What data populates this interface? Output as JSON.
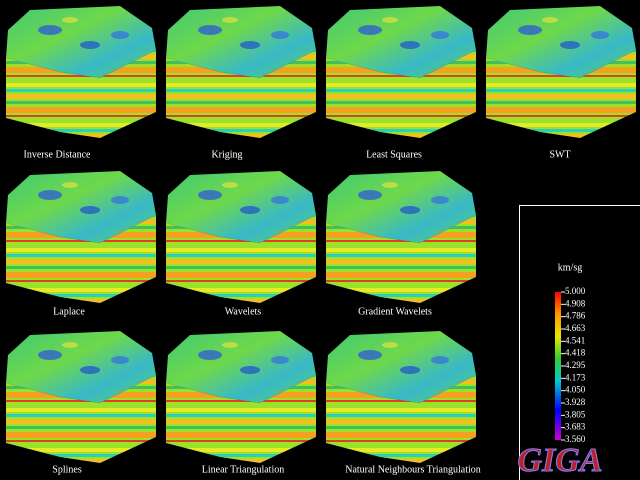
{
  "panels": [
    {
      "label": "Inverse Distance"
    },
    {
      "label": "Kriging"
    },
    {
      "label": "Least Squares"
    },
    {
      "label": "SWT"
    },
    {
      "label": "Laplace"
    },
    {
      "label": "Wavelets"
    },
    {
      "label": "Gradient Wavelets"
    },
    {
      "label": "Splines"
    },
    {
      "label": "Linear Triangulation"
    },
    {
      "label": "Natural Neighbours Triangulation"
    }
  ],
  "legend": {
    "unit": "km/sg",
    "ticks": [
      "5.000",
      "4.908",
      "4.786",
      "4.663",
      "4.541",
      "4.418",
      "4.295",
      "4.173",
      "4.050",
      "3.928",
      "3.805",
      "3.683",
      "3.560"
    ]
  },
  "logo": "GIGA"
}
